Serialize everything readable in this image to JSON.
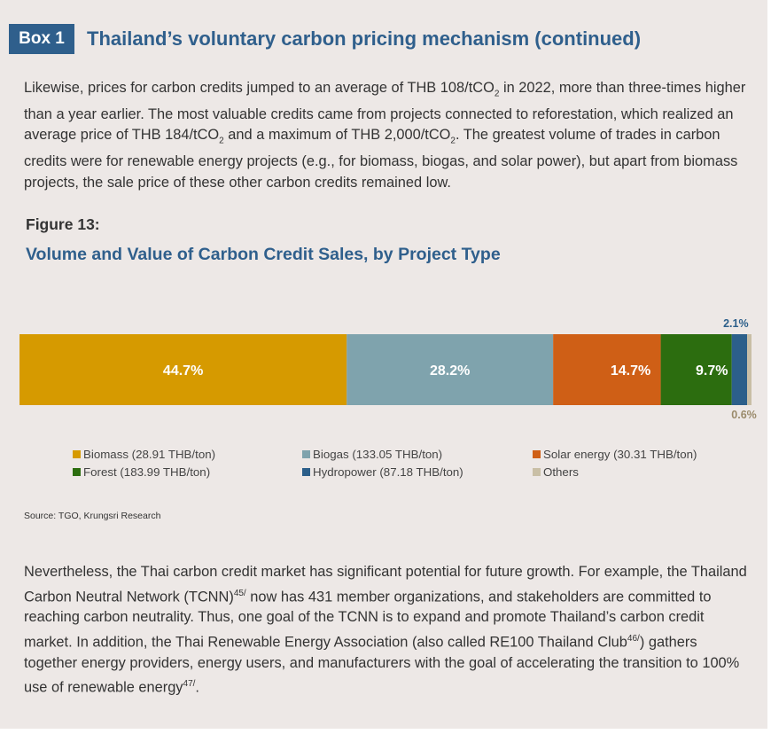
{
  "box": {
    "tag": "Box 1",
    "title": "Thailand’s voluntary carbon pricing mechanism (continued)"
  },
  "paragraph1": {
    "p1": "Likewise, prices for carbon credits jumped to an average of THB 108/tCO",
    "s1": "2",
    "p2": " in 2022, more than three-times higher than a year earlier. The most valuable credits came from projects connected to reforestation, which realized an average price of THB 184/tCO",
    "s2": "2",
    "p3": " and a maximum of THB 2,000/tCO",
    "s3": "2",
    "p4": ". The greatest volume of trades in carbon credits were for renewable energy projects (e.g., for biomass, biogas, and solar power), but apart from biomass projects, the sale price of these other carbon credits remained low."
  },
  "figure": {
    "label": "Figure 13:",
    "title": "Volume and Value of Carbon Credit Sales, by Project Type"
  },
  "chart_data": {
    "type": "bar",
    "orientation": "horizontal-stacked-100",
    "title": "Volume and Value of Carbon Credit Sales, by Project Type",
    "xlabel": "",
    "ylabel": "",
    "xlim": [
      0,
      100
    ],
    "grid": false,
    "legend_position": "bottom",
    "series": [
      {
        "name": "Biomass (28.91 THB/ton)",
        "value": 44.7,
        "label": "44.7%",
        "color": "#d69a00",
        "icon": "seaweed-icon"
      },
      {
        "name": "Biogas (133.05 THB/ton)",
        "value": 28.2,
        "label": "28.2%",
        "color": "#7fa3ad",
        "icon": "sprout-icon"
      },
      {
        "name": "Solar energy (30.31 THB/ton)",
        "value": 14.7,
        "label": "14.7%",
        "color": "#cf5f16",
        "icon": "sun-icon"
      },
      {
        "name": "Forest (183.99 THB/ton)",
        "value": 9.7,
        "label": "9.7%",
        "color": "#2c6d0f",
        "icon": "tree-icon"
      },
      {
        "name": "Hydropower (87.18 THB/ton)",
        "value": 2.1,
        "label": "2.1%",
        "color": "#2c5f8a",
        "icon": "water-drop-icon"
      },
      {
        "name": "Others",
        "value": 0.6,
        "label": "0.6%",
        "color": "#c9bfa6",
        "icon": ""
      }
    ]
  },
  "source": "Source: TGO, Krungsri Research",
  "paragraph2": {
    "p1": "Nevertheless, the Thai carbon credit market has significant potential for future growth. For example, the Thailand Carbon Neutral Network (TCNN)",
    "n1": "45/",
    "p2": " now has 431 member organizations, and stakeholders are committed to reaching carbon neutrality. Thus, one goal of the TCNN is to expand and promote Thailand’s carbon credit market. In addition, the Thai Renewable Energy Association (also called RE100 Thailand Club",
    "n2": "46/",
    "p3": ") gathers together energy providers, energy users, and manufacturers with the goal of accelerating the transition to 100% use of renewable energy",
    "n3": "47/",
    "p4": "."
  },
  "colors": {
    "background": "#ede8e6",
    "heading": "#2f5f8c",
    "body_text": "#333333"
  }
}
